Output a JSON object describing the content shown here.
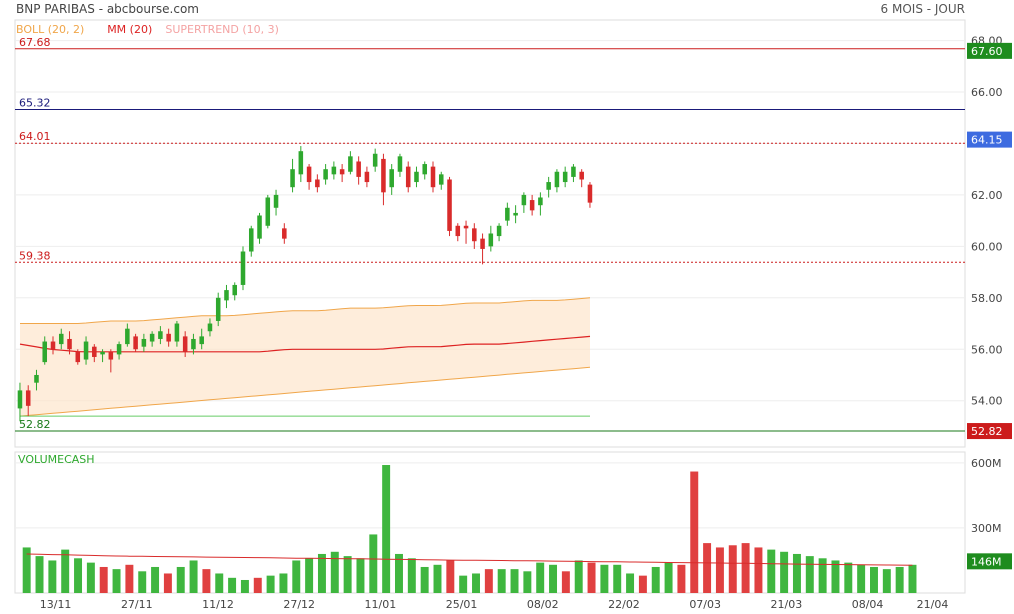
{
  "header": {
    "title": "BNP PARIBAS - abcbourse.com",
    "period": "6 MOIS - JOUR"
  },
  "chart_data": [
    {
      "type": "candlestick",
      "title": "BNP PARIBAS - abcbourse.com",
      "legend": [
        {
          "label": "BOLL (20, 2)",
          "color": "#f0a64a"
        },
        {
          "label": "MM (20)",
          "color": "#dd2222"
        },
        {
          "label": "SUPERTREND (10, 3)",
          "color": "#f4a3a3"
        }
      ],
      "ylim": [
        52.2,
        68.8
      ],
      "y_ticks": [
        54,
        56,
        58,
        60,
        62,
        64,
        66,
        68
      ],
      "y_tick_labels": [
        "54.00",
        "56.00",
        "58.00",
        "60.00",
        "62.00",
        "64.00",
        "66.00",
        "68.00"
      ],
      "x_ticks": [
        {
          "label": "13/11",
          "i": 5
        },
        {
          "label": "27/11",
          "i": 15
        },
        {
          "label": "11/12",
          "i": 25
        },
        {
          "label": "27/12",
          "i": 35
        },
        {
          "label": "11/01",
          "i": 45
        },
        {
          "label": "25/01",
          "i": 55
        },
        {
          "label": "08/02",
          "i": 65
        },
        {
          "label": "22/02",
          "i": 75
        },
        {
          "label": "07/03",
          "i": 85
        },
        {
          "label": "21/03",
          "i": 95
        },
        {
          "label": "08/04",
          "i": 105
        },
        {
          "label": "21/04",
          "i": 113
        }
      ],
      "candles": [
        [
          53.7,
          54.4,
          53.2,
          54.7
        ],
        [
          54.4,
          53.8,
          53.4,
          54.6
        ],
        [
          54.7,
          55.0,
          54.4,
          55.2
        ],
        [
          55.5,
          56.3,
          55.4,
          56.5
        ],
        [
          56.3,
          56.0,
          55.8,
          56.5
        ],
        [
          56.2,
          56.6,
          56.0,
          56.8
        ],
        [
          56.4,
          56.0,
          55.8,
          56.7
        ],
        [
          55.9,
          55.5,
          55.4,
          56.0
        ],
        [
          55.6,
          56.3,
          55.4,
          56.5
        ],
        [
          56.1,
          55.7,
          55.5,
          56.2
        ],
        [
          55.8,
          55.9,
          55.5,
          56.0
        ],
        [
          55.9,
          55.6,
          55.1,
          56.0
        ],
        [
          55.8,
          56.2,
          55.6,
          56.3
        ],
        [
          56.2,
          56.8,
          56.1,
          57.0
        ],
        [
          56.5,
          56.0,
          55.9,
          56.6
        ],
        [
          56.1,
          56.4,
          55.9,
          56.6
        ],
        [
          56.3,
          56.6,
          56.1,
          56.7
        ],
        [
          56.4,
          56.7,
          56.2,
          56.9
        ],
        [
          56.6,
          56.3,
          56.1,
          56.8
        ],
        [
          56.3,
          57.0,
          56.1,
          57.1
        ],
        [
          56.5,
          55.9,
          55.7,
          56.7
        ],
        [
          56.0,
          56.4,
          55.8,
          56.6
        ],
        [
          56.2,
          56.5,
          56.0,
          56.8
        ],
        [
          56.7,
          57.0,
          56.5,
          57.2
        ],
        [
          57.1,
          58.0,
          56.9,
          58.2
        ],
        [
          57.9,
          58.3,
          57.6,
          58.5
        ],
        [
          58.1,
          58.5,
          57.9,
          58.6
        ],
        [
          58.5,
          59.8,
          58.3,
          60.0
        ],
        [
          59.8,
          60.7,
          59.6,
          60.8
        ],
        [
          60.3,
          61.2,
          60.1,
          61.3
        ],
        [
          60.8,
          61.9,
          60.7,
          62.0
        ],
        [
          61.5,
          62.0,
          61.2,
          62.2
        ],
        [
          60.7,
          60.3,
          60.1,
          60.9
        ],
        [
          62.3,
          63.0,
          62.1,
          63.4
        ],
        [
          62.8,
          63.7,
          62.5,
          63.9
        ],
        [
          63.1,
          62.5,
          62.2,
          63.2
        ],
        [
          62.6,
          62.3,
          62.1,
          62.8
        ],
        [
          62.6,
          63.0,
          62.4,
          63.2
        ],
        [
          62.8,
          63.1,
          62.6,
          63.3
        ],
        [
          63.0,
          62.8,
          62.5,
          63.2
        ],
        [
          62.9,
          63.5,
          62.8,
          63.7
        ],
        [
          63.3,
          62.7,
          62.4,
          63.5
        ],
        [
          62.9,
          62.5,
          62.3,
          63.1
        ],
        [
          63.1,
          63.6,
          62.9,
          63.8
        ],
        [
          63.4,
          62.1,
          61.6,
          63.6
        ],
        [
          62.3,
          63.0,
          62.0,
          63.2
        ],
        [
          62.9,
          63.5,
          62.7,
          63.6
        ],
        [
          63.1,
          62.3,
          62.1,
          63.3
        ],
        [
          62.5,
          62.9,
          62.3,
          63.1
        ],
        [
          62.8,
          63.2,
          62.6,
          63.3
        ],
        [
          63.1,
          62.3,
          62.1,
          63.3
        ],
        [
          62.4,
          62.8,
          62.2,
          62.9
        ],
        [
          62.6,
          60.6,
          60.4,
          62.7
        ],
        [
          60.8,
          60.4,
          60.2,
          60.9
        ],
        [
          60.8,
          60.7,
          60.1,
          61.0
        ],
        [
          60.7,
          60.2,
          59.9,
          60.9
        ],
        [
          60.3,
          59.9,
          59.3,
          60.5
        ],
        [
          60.0,
          60.5,
          59.8,
          60.8
        ],
        [
          60.4,
          60.8,
          60.2,
          60.9
        ],
        [
          61.0,
          61.5,
          60.8,
          61.7
        ],
        [
          61.2,
          61.3,
          60.9,
          61.6
        ],
        [
          61.6,
          62.0,
          61.3,
          62.1
        ],
        [
          61.8,
          61.4,
          61.2,
          62.0
        ],
        [
          61.6,
          61.9,
          61.2,
          62.1
        ],
        [
          62.2,
          62.5,
          61.9,
          62.7
        ],
        [
          62.3,
          62.9,
          62.1,
          63.0
        ],
        [
          62.5,
          62.9,
          62.3,
          63.1
        ],
        [
          62.7,
          63.1,
          62.5,
          63.2
        ],
        [
          62.9,
          62.6,
          62.3,
          63.0
        ],
        [
          62.4,
          61.7,
          61.5,
          62.5
        ]
      ],
      "price_labels": [
        {
          "text": "67.68",
          "value": 67.68
        },
        {
          "text": "65.32",
          "value": 65.32
        },
        {
          "text": "64.01",
          "value": 64.01
        },
        {
          "text": "59.38",
          "value": 59.38
        },
        {
          "text": "52.82",
          "value": 52.82
        }
      ],
      "axis_badges": [
        {
          "text": "67.60",
          "value": 67.6,
          "color": "#1e8c1e"
        },
        {
          "text": "64.15",
          "value": 64.15,
          "color": "#3d6be0"
        },
        {
          "text": "52.82",
          "value": 52.82,
          "color": "#cc1b1b"
        }
      ],
      "ma": [
        56.2,
        56.0,
        55.9,
        55.9,
        55.9,
        55.9,
        55.9,
        55.9,
        55.9,
        56.0,
        56.0,
        56.0,
        56.0,
        56.1,
        56.1,
        56.2,
        56.2,
        56.3,
        56.4,
        56.5
      ],
      "bollinger_upper": [
        57.0,
        57.0,
        57.0,
        57.1,
        57.1,
        57.2,
        57.3,
        57.3,
        57.4,
        57.5,
        57.5,
        57.6,
        57.6,
        57.7,
        57.7,
        57.8,
        57.8,
        57.9,
        57.9,
        58.0
      ],
      "bollinger_lower": [
        53.4,
        53.5,
        53.6,
        53.7,
        53.8,
        53.9,
        54.0,
        54.1,
        54.2,
        54.3,
        54.4,
        54.5,
        54.6,
        54.7,
        54.8,
        54.9,
        55.0,
        55.1,
        55.2,
        55.3
      ],
      "supertrend": [
        53.4,
        53.4,
        53.4,
        53.4,
        53.4,
        53.4,
        53.4,
        53.4,
        53.4,
        53.4,
        53.4,
        53.4,
        53.4,
        53.4,
        53.4,
        53.4,
        53.4,
        53.4,
        53.4,
        53.4
      ]
    },
    {
      "type": "bar",
      "title": "VOLUMECASH",
      "ylim": [
        0,
        650
      ],
      "unit": "M",
      "y_ticks": [
        {
          "label": "600M",
          "value": 600
        },
        {
          "label": "300M",
          "value": 300
        }
      ],
      "badge": {
        "text": "146M",
        "value": 146,
        "color": "#1e8c1e"
      },
      "volumes": [
        [
          210,
          "up"
        ],
        [
          170,
          "up"
        ],
        [
          150,
          "up"
        ],
        [
          200,
          "up"
        ],
        [
          160,
          "up"
        ],
        [
          140,
          "up"
        ],
        [
          120,
          "down"
        ],
        [
          110,
          "up"
        ],
        [
          130,
          "down"
        ],
        [
          100,
          "up"
        ],
        [
          120,
          "up"
        ],
        [
          90,
          "down"
        ],
        [
          120,
          "up"
        ],
        [
          150,
          "up"
        ],
        [
          110,
          "down"
        ],
        [
          90,
          "up"
        ],
        [
          70,
          "up"
        ],
        [
          60,
          "up"
        ],
        [
          70,
          "down"
        ],
        [
          80,
          "up"
        ],
        [
          90,
          "up"
        ],
        [
          150,
          "up"
        ],
        [
          160,
          "up"
        ],
        [
          180,
          "up"
        ],
        [
          190,
          "up"
        ],
        [
          170,
          "up"
        ],
        [
          160,
          "up"
        ],
        [
          270,
          "up"
        ],
        [
          590,
          "up"
        ],
        [
          180,
          "up"
        ],
        [
          160,
          "up"
        ],
        [
          120,
          "up"
        ],
        [
          130,
          "up"
        ],
        [
          150,
          "down"
        ],
        [
          80,
          "up"
        ],
        [
          90,
          "up"
        ],
        [
          110,
          "down"
        ],
        [
          110,
          "up"
        ],
        [
          110,
          "up"
        ],
        [
          100,
          "up"
        ],
        [
          140,
          "up"
        ],
        [
          130,
          "up"
        ],
        [
          100,
          "down"
        ],
        [
          150,
          "up"
        ],
        [
          140,
          "down"
        ],
        [
          130,
          "up"
        ],
        [
          130,
          "up"
        ],
        [
          90,
          "up"
        ],
        [
          80,
          "down"
        ],
        [
          120,
          "up"
        ],
        [
          140,
          "up"
        ],
        [
          130,
          "down"
        ],
        [
          560,
          "down"
        ],
        [
          230,
          "down"
        ],
        [
          210,
          "down"
        ],
        [
          220,
          "down"
        ],
        [
          230,
          "down"
        ],
        [
          210,
          "down"
        ],
        [
          200,
          "up"
        ],
        [
          190,
          "up"
        ],
        [
          180,
          "up"
        ],
        [
          170,
          "up"
        ],
        [
          160,
          "up"
        ],
        [
          150,
          "up"
        ],
        [
          140,
          "up"
        ],
        [
          130,
          "up"
        ],
        [
          120,
          "up"
        ],
        [
          110,
          "up"
        ],
        [
          120,
          "up"
        ],
        [
          130,
          "up"
        ]
      ],
      "volume_ma": [
        180,
        175,
        170,
        168,
        165,
        163,
        160,
        158,
        155,
        152,
        150,
        148,
        145,
        143,
        140,
        138,
        135,
        132,
        130,
        128
      ]
    }
  ]
}
